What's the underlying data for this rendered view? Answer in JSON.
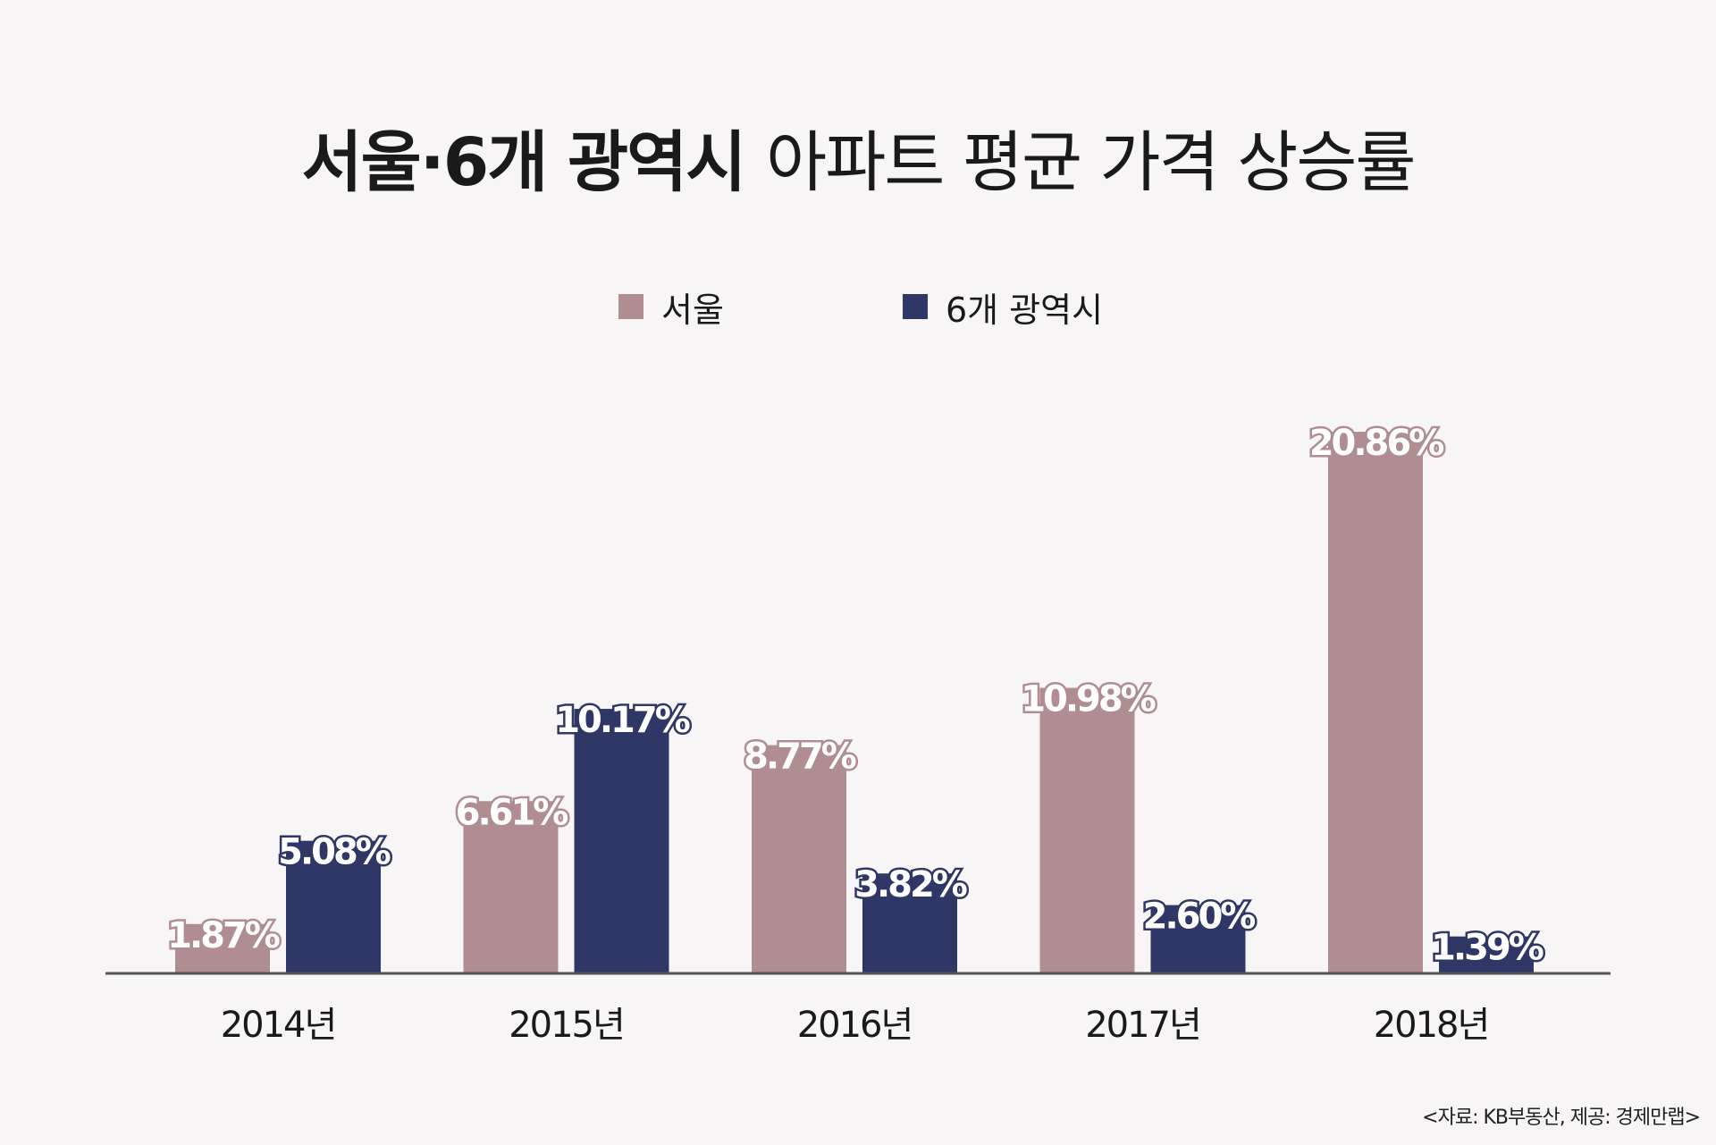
{
  "chart_data": {
    "type": "bar",
    "title_bold": "서울·6개 광역시",
    "title_light": "아파트 평균 가격 상승률",
    "categories": [
      "2014년",
      "2015년",
      "2016년",
      "2017년",
      "2018년"
    ],
    "series": [
      {
        "name": "서울",
        "color": "#b08d91",
        "values": [
          1.87,
          6.61,
          8.77,
          10.98,
          20.86
        ],
        "labels": [
          "1.87%",
          "6.61%",
          "8.77%",
          "10.98%",
          "20.86%"
        ]
      },
      {
        "name": "6개 광역시",
        "color": "#2f3766",
        "values": [
          5.08,
          10.17,
          3.82,
          2.6,
          1.39
        ],
        "labels": [
          "5.08%",
          "10.17%",
          "3.82%",
          "2.60%",
          "1.39%"
        ]
      }
    ],
    "ylim": [
      0,
      22
    ],
    "grid": false,
    "legend_position": "top-center",
    "source": "<자료: KB부동산, 제공: 경제만랩>"
  }
}
